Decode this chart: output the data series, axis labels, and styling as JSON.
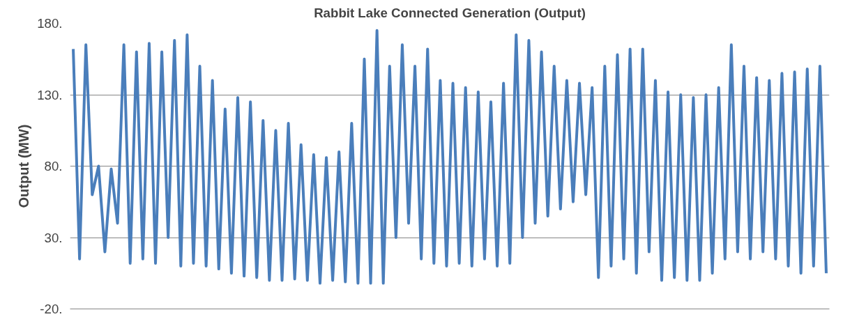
{
  "chart_data": {
    "type": "line",
    "title": "Rabbit Lake Connected Generation (Output)",
    "ylabel": "Output (MW)",
    "categories": [
      null,
      null,
      null,
      null,
      null,
      null,
      null,
      null,
      null,
      null,
      null,
      null,
      null,
      null,
      null,
      null,
      null,
      null,
      null,
      null,
      null,
      null,
      null,
      null,
      null,
      null,
      null,
      null,
      null,
      null,
      null,
      null,
      null,
      null,
      null,
      null,
      null,
      null,
      null,
      null,
      null,
      null,
      null,
      null,
      null,
      null,
      null,
      null,
      null,
      null,
      null,
      null,
      null,
      null,
      null,
      null,
      null,
      null,
      null,
      null,
      null,
      null,
      null,
      null,
      null,
      null,
      null,
      null,
      null,
      null,
      null,
      null,
      null,
      null,
      null,
      null,
      null,
      null,
      null,
      null,
      null,
      null,
      null,
      null,
      null,
      null,
      null,
      null,
      null,
      null,
      null,
      null,
      null,
      null,
      null,
      null,
      null,
      null,
      null,
      null,
      null,
      null,
      null,
      null,
      null,
      null,
      null,
      null,
      null,
      null,
      null,
      null,
      null,
      null,
      null,
      null,
      null,
      null,
      null,
      null
    ],
    "series": [
      {
        "color": "#4a7ebb",
        "values": [
          162,
          15,
          165,
          60,
          80,
          20,
          78,
          40,
          165,
          12,
          160,
          15,
          166,
          12,
          160,
          30,
          168,
          10,
          172,
          12,
          150,
          10,
          140,
          8,
          120,
          5,
          128,
          3,
          125,
          2,
          112,
          0,
          105,
          0,
          110,
          1,
          95,
          0,
          88,
          -2,
          86,
          0,
          90,
          -1,
          110,
          -2,
          155,
          -2,
          175,
          -2,
          150,
          30,
          165,
          40,
          150,
          15,
          162,
          12,
          140,
          10,
          138,
          12,
          135,
          10,
          132,
          15,
          125,
          10,
          138,
          12,
          172,
          30,
          168,
          40,
          160,
          45,
          150,
          50,
          140,
          55,
          138,
          60,
          135,
          2,
          150,
          10,
          158,
          15,
          162,
          5,
          162,
          20,
          140,
          0,
          132,
          2,
          130,
          0,
          128,
          0,
          130,
          5,
          135,
          15,
          165,
          20,
          150,
          15,
          142,
          20,
          140,
          15,
          145,
          10,
          146,
          5,
          148,
          10,
          150,
          5
        ]
      }
    ],
    "ylim": [
      -20,
      180
    ],
    "yticks": [
      {
        "value": -20,
        "label": "-20."
      },
      {
        "value": 30,
        "label": "30."
      },
      {
        "value": 80,
        "label": "80."
      },
      {
        "value": 130,
        "label": "130."
      },
      {
        "value": 180,
        "label": "180."
      }
    ],
    "grid": "y",
    "marker": "none",
    "line_style": "solid",
    "tick_labels": "y"
  }
}
